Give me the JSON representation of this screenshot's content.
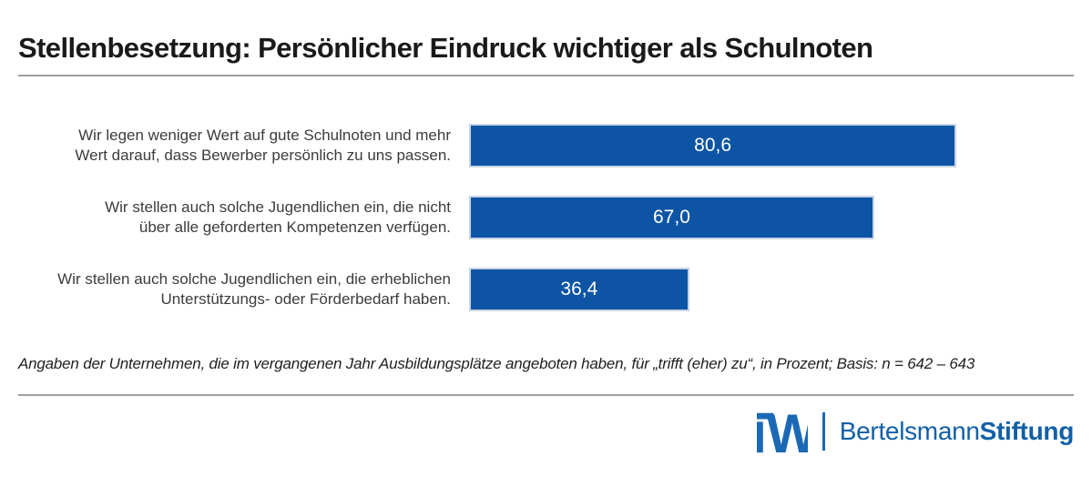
{
  "title": "Stellenbesetzung: Persönlicher Eindruck wichtiger als Schulnoten",
  "chart_data": {
    "type": "bar",
    "orientation": "horizontal",
    "title": "Stellenbesetzung: Persönlicher Eindruck wichtiger als Schulnoten",
    "categories": [
      "Wir legen weniger Wert auf gute Schulnoten und mehr Wert darauf, dass Bewerber persönlich zu uns passen.",
      "Wir stellen auch solche Jugendlichen ein, die nicht über alle geforderten Kompetenzen verfügen.",
      "Wir stellen auch solche Jugendlichen ein, die erheblichen Unterstützungs- oder Förderbedarf haben."
    ],
    "category_lines": [
      [
        "Wir legen weniger Wert auf gute Schulnoten und mehr",
        "Wert darauf, dass Bewerber persönlich zu uns passen."
      ],
      [
        "Wir stellen auch solche Jugendlichen ein, die nicht",
        "über alle geforderten Kompetenzen verfügen."
      ],
      [
        "Wir stellen auch solche Jugendlichen ein, die erheblichen",
        "Unterstützungs- oder Förderbedarf haben."
      ]
    ],
    "values": [
      80.6,
      67.0,
      36.4
    ],
    "value_labels": [
      "80,6",
      "67,0",
      "36,4"
    ],
    "xlim": [
      0,
      100
    ],
    "unit": "Prozent",
    "grid": false,
    "legend": false,
    "bar_color": "#0d55a4",
    "bar_border_color": "#c8d4e4",
    "value_label_color": "#ffffff"
  },
  "footnote": "Angaben der Unternehmen, die im vergangenen Jahr Ausbildungsplätze angeboten haben, für „trifft (eher) zu“, in Prozent; Basis: n = 642 – 643",
  "footer": {
    "iw_logo_name": "iw-institut-logo",
    "brand_regular": "Bertelsmann",
    "brand_bold": "Stiftung",
    "logo_blue": "#1b69b5",
    "brand_blue": "#1160a7"
  }
}
